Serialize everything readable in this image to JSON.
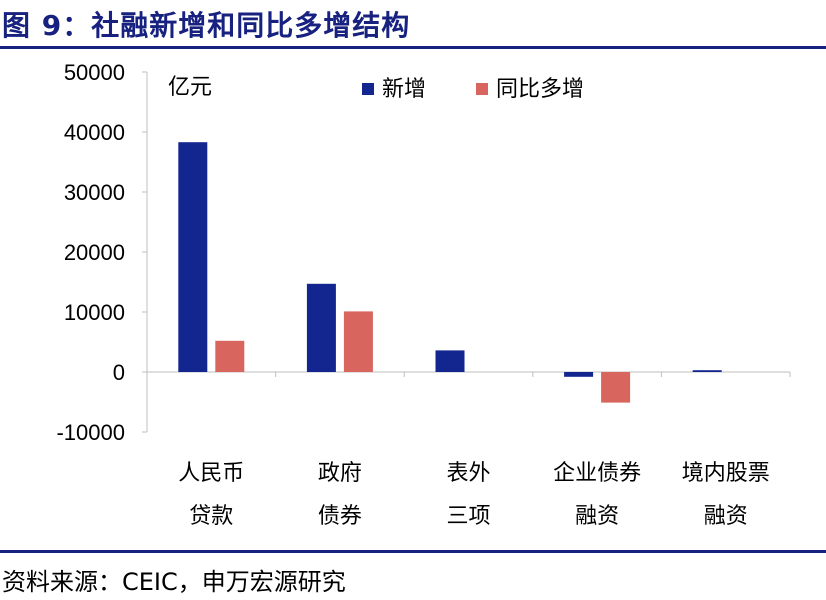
{
  "title": "图 9：社融新增和同比多增结构",
  "source": "资料来源：CEIC，申万宏源研究",
  "colors": {
    "accent": "#17217f",
    "series_new": "#13268f",
    "series_yoy": "#d9655f"
  },
  "chart_data": {
    "type": "bar",
    "unit_label": "亿元",
    "categories": [
      [
        "人民币",
        "贷款"
      ],
      [
        "政府",
        "债券"
      ],
      [
        "表外",
        "三项"
      ],
      [
        "企业债券",
        "融资"
      ],
      [
        "境内股票",
        "融资"
      ]
    ],
    "series": [
      {
        "name": "新增",
        "values": [
          38300,
          14700,
          3600,
          -800,
          300
        ]
      },
      {
        "name": "同比多增",
        "values": [
          5200,
          10100,
          0,
          -5100,
          0
        ]
      }
    ],
    "ylim": [
      -10000,
      50000
    ],
    "yticks": [
      50000,
      40000,
      30000,
      20000,
      10000,
      0,
      -10000
    ],
    "ytick_labels": [
      "50000",
      "40000",
      "30000",
      "20000",
      "10000",
      "0",
      "-10000"
    ],
    "legend_position": "top"
  }
}
